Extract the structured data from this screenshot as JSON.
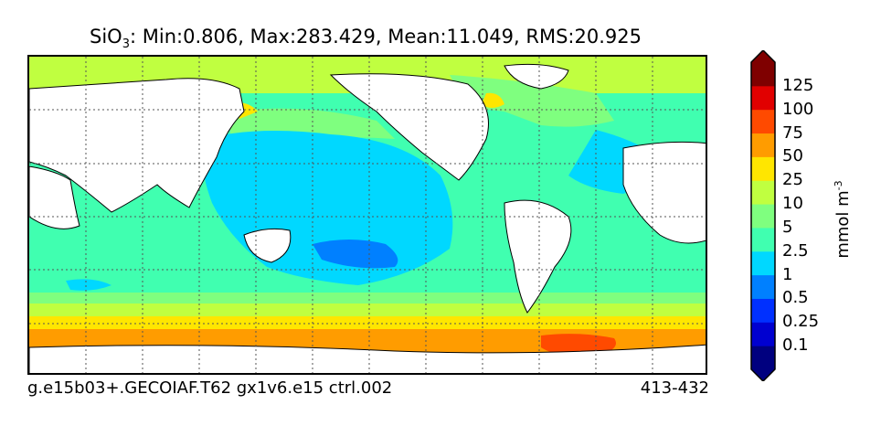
{
  "title": {
    "species": "SiO",
    "subscript": "3",
    "stats": ": Min:0.806, Max:283.429, Mean:11.049, RMS:20.925"
  },
  "footer": {
    "case": "g.e15b03+.GECOIAF.T62 gx1v6.e15 ctrl.002",
    "years": "413-432"
  },
  "colorbar": {
    "units": "mmol m",
    "units_exp": "-3",
    "levels": [
      "0.1",
      "0.25",
      "0.5",
      "1",
      "2.5",
      "5",
      "10",
      "25",
      "50",
      "75",
      "100",
      "125"
    ],
    "colors": [
      "#00007f",
      "#0000d0",
      "#0030ff",
      "#0080ff",
      "#00d8ff",
      "#40ffb0",
      "#7fff7f",
      "#c0ff40",
      "#ffe600",
      "#ff9c00",
      "#ff4a00",
      "#e10000",
      "#7f0000"
    ]
  },
  "map": {
    "ocean_color": "#40ffb0",
    "land_color": "#ffffff",
    "grid": true
  }
}
